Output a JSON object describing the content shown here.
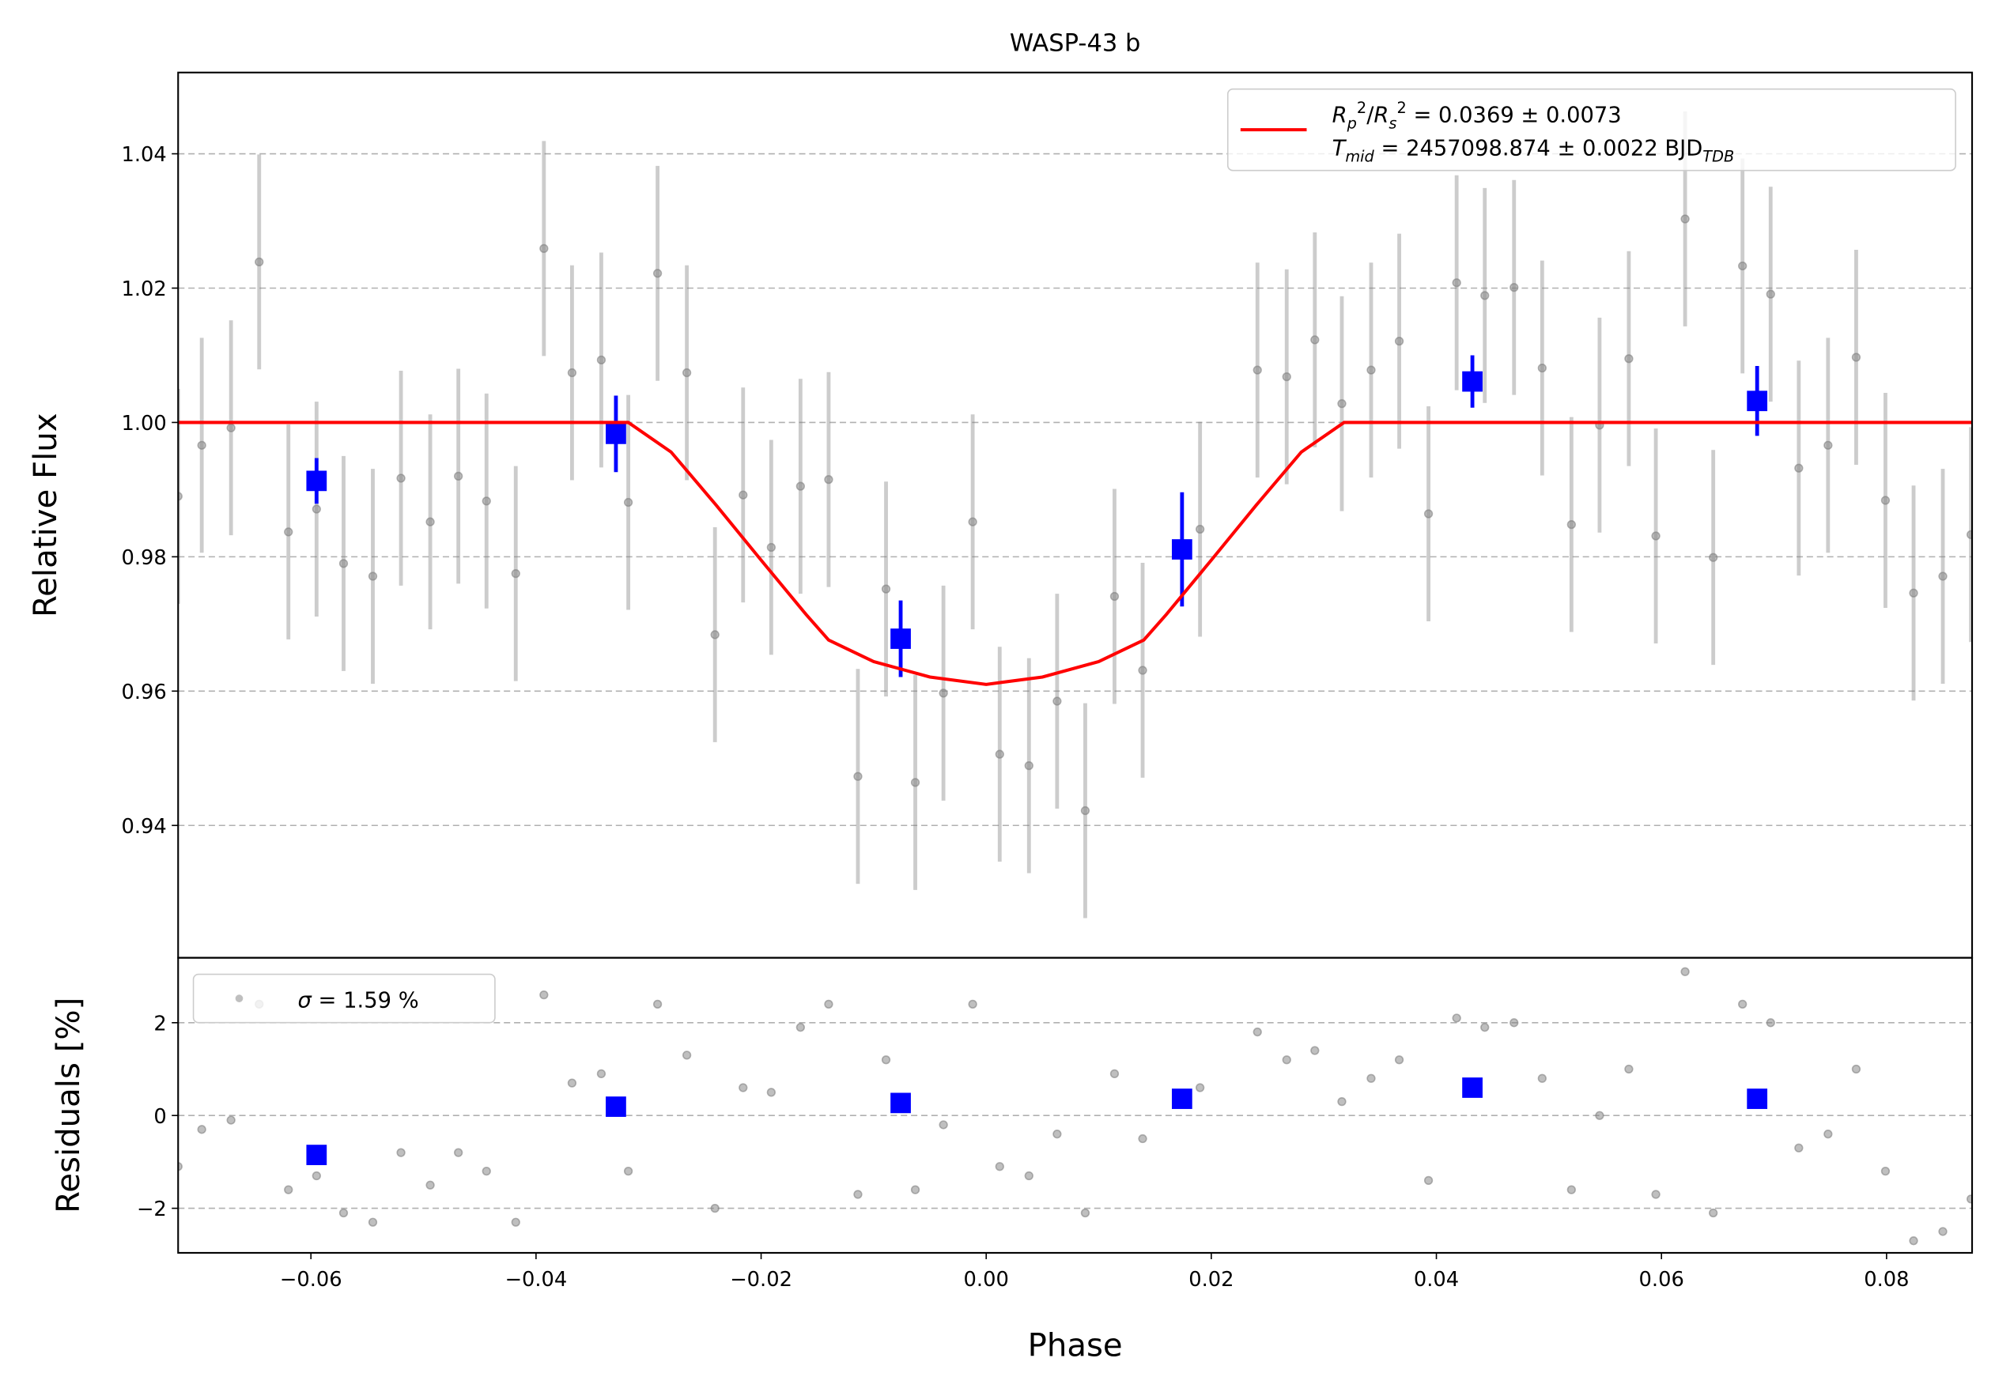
{
  "chart_data": [
    {
      "type": "errorbar",
      "title": "WASP-43 b",
      "ylabel": "Relative Flux",
      "xlim": [
        -0.0718,
        0.0876
      ],
      "ylim": [
        0.9203,
        1.0521
      ],
      "yticks": [
        0.94,
        0.96,
        0.98,
        {
          "value": 1.0,
          "label": "1.00"
        },
        1.02,
        1.04
      ],
      "grid": true,
      "legend": "upper right",
      "series": [
        {
          "marker": "circle",
          "color": "#808080",
          "x": [
            -0.0718,
            -0.0697,
            -0.0671,
            -0.0646,
            -0.062,
            -0.0595,
            -0.0571,
            -0.0545,
            -0.052,
            -0.0494,
            -0.0469,
            -0.0444,
            -0.0418,
            -0.0393,
            -0.0368,
            -0.0342,
            -0.0318,
            -0.0292,
            -0.0266,
            -0.0241,
            -0.0216,
            -0.0191,
            -0.0165,
            -0.014,
            -0.0114,
            -0.0089,
            -0.0063,
            -0.0038,
            -0.0012,
            0.0012,
            0.0038,
            0.0063,
            0.0088,
            0.0114,
            0.0139,
            0.019,
            0.0241,
            0.0267,
            0.0292,
            0.0316,
            0.0342,
            0.0367,
            0.0393,
            0.0418,
            0.0443,
            0.0469,
            0.0494,
            0.052,
            0.0545,
            0.0571,
            0.0595,
            0.0621,
            0.0646,
            0.0672,
            0.0697,
            0.0722,
            0.0748,
            0.0773,
            0.0799,
            0.0824,
            0.085,
            0.0875
          ],
          "values": [
            0.989,
            0.9966,
            0.9992,
            1.0239,
            0.9837,
            0.9871,
            0.979,
            0.9771,
            0.9917,
            0.9852,
            0.992,
            0.9883,
            0.9775,
            1.0259,
            1.0074,
            1.0093,
            0.9881,
            1.0222,
            1.0074,
            0.9684,
            0.9892,
            0.9814,
            0.9905,
            0.9915,
            0.9473,
            0.9752,
            0.9464,
            0.9597,
            0.9852,
            0.9506,
            0.9489,
            0.9585,
            0.9422,
            0.9741,
            0.9631,
            0.9841,
            1.0078,
            1.0068,
            1.0123,
            1.0028,
            1.0078,
            1.0121,
            0.9864,
            1.0208,
            1.0189,
            1.0201,
            1.0081,
            0.9848,
            0.9996,
            1.0095,
            0.9831,
            1.0303,
            0.9799,
            1.0233,
            1.0191,
            0.9932,
            0.9966,
            1.0097,
            0.9884,
            0.9746,
            0.9771,
            0.9833
          ],
          "errors": [
            0.016,
            0.016,
            0.016,
            0.016,
            0.016,
            0.016,
            0.016,
            0.016,
            0.016,
            0.016,
            0.016,
            0.016,
            0.016,
            0.016,
            0.016,
            0.016,
            0.016,
            0.016,
            0.016,
            0.016,
            0.016,
            0.016,
            0.016,
            0.016,
            0.016,
            0.016,
            0.016,
            0.016,
            0.016,
            0.016,
            0.016,
            0.016,
            0.016,
            0.016,
            0.016,
            0.016,
            0.016,
            0.016,
            0.016,
            0.016,
            0.016,
            0.016,
            0.016,
            0.016,
            0.016,
            0.016,
            0.016,
            0.016,
            0.016,
            0.016,
            0.016,
            0.016,
            0.016,
            0.016,
            0.016,
            0.016,
            0.016,
            0.016,
            0.016,
            0.016,
            0.016,
            0.016
          ]
        },
        {
          "marker": "square",
          "color": "#0000ff",
          "x": [
            -0.0595,
            -0.0329,
            -0.0076,
            0.0174,
            0.0432,
            0.0685
          ],
          "values": [
            0.9913,
            0.9983,
            0.9678,
            0.9811,
            1.0061,
            1.0032
          ],
          "errors": [
            0.0034,
            0.0057,
            0.0057,
            0.0085,
            0.0039,
            0.0052
          ]
        },
        {
          "marker": "line",
          "color": "#ff0000",
          "name": [
            [
              {
                "text": "R",
                "style": "italic"
              },
              {
                "text": "p",
                "style": "italic sub"
              },
              {
                "text": "2",
                "style": "sup"
              },
              {
                "text": "/"
              },
              {
                "text": "R",
                "style": "italic"
              },
              {
                "text": "s",
                "style": "italic sub"
              },
              {
                "text": "2",
                "style": "sup"
              },
              {
                "text": " = 0.0369 ± 0.0073"
              }
            ],
            [
              {
                "text": "T",
                "style": "italic"
              },
              {
                "text": "mid",
                "style": "italic sub"
              },
              {
                "text": " = 2457098.874 ± 0.0022 BJD"
              },
              {
                "text": "TDB",
                "style": "italic sub"
              }
            ]
          ],
          "x": [
            -0.0718,
            -0.0318,
            -0.028,
            -0.024,
            -0.02,
            -0.016,
            -0.014,
            -0.01,
            -0.005,
            0,
            0.005,
            0.01,
            0.014,
            0.016,
            0.02,
            0.024,
            0.028,
            0.0318,
            0.0876
          ],
          "values": [
            1.0,
            1.0,
            0.9956,
            0.9877,
            0.9795,
            0.9714,
            0.9676,
            0.9644,
            0.9621,
            0.961,
            0.9621,
            0.9644,
            0.9676,
            0.9714,
            0.9795,
            0.9877,
            0.9956,
            1.0,
            1.0
          ]
        }
      ]
    },
    {
      "type": "scatter",
      "xlabel": "Phase",
      "ylabel": "Residuals [%]",
      "xlim": [
        -0.0718,
        0.0876
      ],
      "ylim": [
        -2.96,
        3.4
      ],
      "xticks": [
        {
          "value": -0.06,
          "label": "−0.06"
        },
        {
          "value": -0.04,
          "label": "−0.04"
        },
        {
          "value": -0.02,
          "label": "−0.02"
        },
        {
          "value": 0,
          "label": "0.00"
        },
        0.02,
        0.04,
        0.06,
        0.08
      ],
      "yticks": [
        {
          "value": -2,
          "label": "−2"
        },
        0,
        2
      ],
      "grid": true,
      "legend": "upper left",
      "series": [
        {
          "marker": "circle",
          "color": "#808080",
          "name": [
            [
              {
                "text": "σ",
                "style": "italic"
              },
              {
                "text": " = 1.59 %"
              }
            ]
          ],
          "x": [
            -0.0718,
            -0.0697,
            -0.0671,
            -0.0646,
            -0.062,
            -0.0595,
            -0.0571,
            -0.0545,
            -0.052,
            -0.0494,
            -0.0469,
            -0.0444,
            -0.0418,
            -0.0393,
            -0.0368,
            -0.0342,
            -0.0318,
            -0.0292,
            -0.0266,
            -0.0241,
            -0.0216,
            -0.0191,
            -0.0165,
            -0.014,
            -0.0114,
            -0.0089,
            -0.0063,
            -0.0038,
            -0.0012,
            0.0012,
            0.0038,
            0.0063,
            0.0088,
            0.0114,
            0.0139,
            0.019,
            0.0241,
            0.0267,
            0.0292,
            0.0316,
            0.0342,
            0.0367,
            0.0393,
            0.0418,
            0.0443,
            0.0469,
            0.0494,
            0.052,
            0.0545,
            0.0571,
            0.0595,
            0.0621,
            0.0646,
            0.0672,
            0.0697,
            0.0722,
            0.0748,
            0.0773,
            0.0799,
            0.0824,
            0.085,
            0.0875
          ],
          "values": [
            -1.1,
            -0.3,
            -0.1,
            2.4,
            -1.6,
            -1.3,
            -2.1,
            -2.3,
            -0.8,
            -1.5,
            -0.8,
            -1.2,
            -2.3,
            2.6,
            0.7,
            0.9,
            -1.2,
            2.4,
            1.3,
            -2.0,
            0.6,
            0.5,
            1.9,
            2.4,
            -1.7,
            1.2,
            -1.6,
            -0.2,
            2.4,
            -1.1,
            -1.3,
            -0.4,
            -2.1,
            0.9,
            -0.5,
            0.6,
            1.8,
            1.2,
            1.4,
            0.3,
            0.8,
            1.2,
            -1.4,
            2.1,
            1.9,
            2.0,
            0.8,
            -1.6,
            0.0,
            1.0,
            -1.7,
            3.1,
            -2.1,
            2.4,
            2.0,
            -0.7,
            -0.4,
            1.0,
            -1.2,
            -2.7,
            -2.5,
            -1.8
          ]
        },
        {
          "marker": "square",
          "color": "#0000ff",
          "x": [
            -0.0595,
            -0.0329,
            -0.0076,
            0.0174,
            0.0432,
            0.0685
          ],
          "values": [
            -0.85,
            0.19,
            0.27,
            0.36,
            0.6,
            0.36
          ]
        }
      ]
    }
  ]
}
